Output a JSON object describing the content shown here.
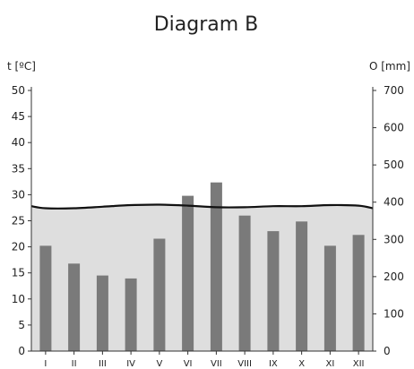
{
  "chart_data": {
    "type": "bar",
    "title": "Diagram B",
    "left_axis_label": "t  [ºC]",
    "right_axis_label": "O [mm]",
    "categories": [
      "I",
      "II",
      "III",
      "IV",
      "V",
      "VI",
      "VII",
      "VIII",
      "IX",
      "X",
      "XI",
      "XII"
    ],
    "left_ticks": [
      0,
      5,
      10,
      15,
      20,
      25,
      30,
      35,
      40,
      45,
      50
    ],
    "right_ticks": [
      0,
      100,
      200,
      300,
      400,
      500,
      600,
      700
    ],
    "ylim_left": [
      0,
      50
    ],
    "ylim_right": [
      0,
      700
    ],
    "series": [
      {
        "kind": "bar",
        "axis": "right",
        "unit": "mm",
        "values": [
          283,
          235,
          203,
          195,
          302,
          417,
          453,
          364,
          322,
          348,
          283,
          312
        ]
      },
      {
        "kind": "area-line",
        "axis": "left",
        "unit": "ºC",
        "x": [
          0,
          0.5,
          1.5,
          2.5,
          3.5,
          4.5,
          5.5,
          6.5,
          7.5,
          8.5,
          9.5,
          10.5,
          11.5,
          12
        ],
        "values": [
          27.8,
          27.4,
          27.4,
          27.7,
          28.0,
          28.1,
          27.9,
          27.6,
          27.6,
          27.8,
          27.8,
          28.0,
          27.9,
          27.4
        ]
      }
    ],
    "colors": {
      "bar": "#7a7a7a",
      "area": "#dedede",
      "line": "#111111",
      "axis": "#333333"
    },
    "grid": false,
    "legend": "none"
  }
}
